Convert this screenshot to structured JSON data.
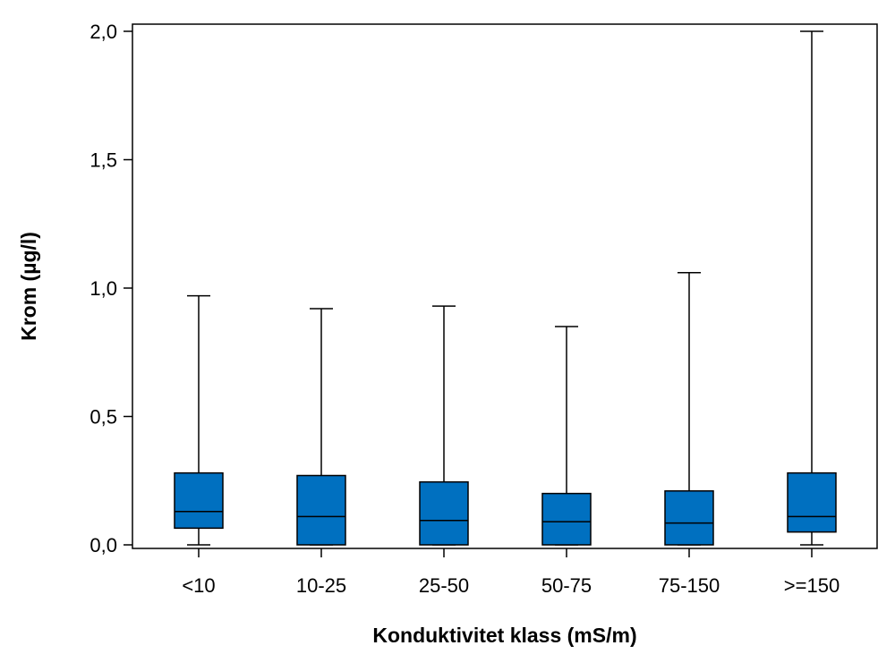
{
  "chart_data": {
    "type": "boxplot",
    "xlabel": "Konduktivitet klass (mS/m)",
    "ylabel": "Krom (µg/l)",
    "ylim": [
      0,
      2.0
    ],
    "yticks": [
      "0,0",
      "0,5",
      "1,0",
      "1,5",
      "2,0"
    ],
    "ytick_values": [
      0,
      0.5,
      1.0,
      1.5,
      2.0
    ],
    "grid": false,
    "box_color": "#0070c0",
    "categories": [
      "<10",
      "10-25",
      "25-50",
      "50-75",
      "75-150",
      ">=150"
    ],
    "boxes": [
      {
        "min": 0.0,
        "q1": 0.065,
        "median": 0.13,
        "q3": 0.28,
        "max": 0.97
      },
      {
        "min": 0.0,
        "q1": 0.0,
        "median": 0.11,
        "q3": 0.27,
        "max": 0.92
      },
      {
        "min": 0.0,
        "q1": 0.0,
        "median": 0.095,
        "q3": 0.245,
        "max": 0.93
      },
      {
        "min": 0.0,
        "q1": 0.0,
        "median": 0.09,
        "q3": 0.2,
        "max": 0.85
      },
      {
        "min": 0.0,
        "q1": 0.0,
        "median": 0.085,
        "q3": 0.21,
        "max": 1.06
      },
      {
        "min": 0.0,
        "q1": 0.05,
        "median": 0.11,
        "q3": 0.28,
        "max": 2.0
      }
    ]
  }
}
